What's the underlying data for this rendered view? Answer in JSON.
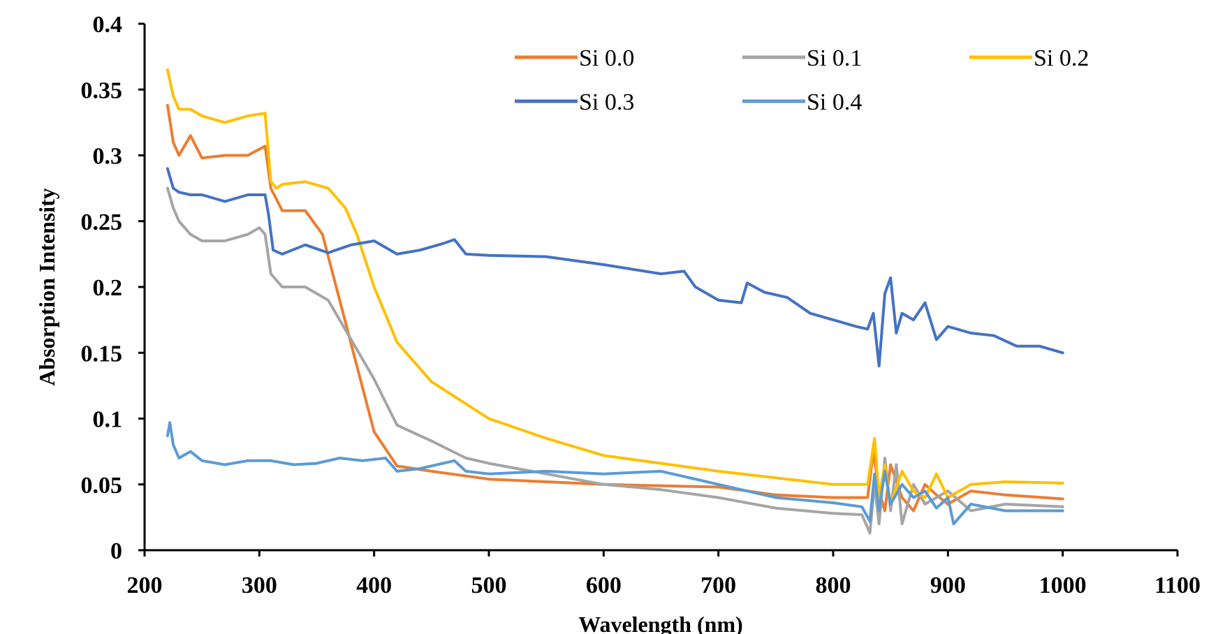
{
  "chart_data": {
    "type": "line",
    "xlabel": "Wavelength (nm)",
    "ylabel": "Absorption Intensity",
    "xlim": [
      200,
      1100
    ],
    "ylim": [
      0,
      0.4
    ],
    "xticks": [
      "200",
      "300",
      "400",
      "500",
      "600",
      "700",
      "800",
      "900",
      "1000",
      "1100"
    ],
    "yticks": [
      "0",
      "0.05",
      "0.1",
      "0.15",
      "0.2",
      "0.25",
      "0.3",
      "0.35",
      "0.4"
    ],
    "grid": false,
    "legend_position": "top-right",
    "series": [
      {
        "name": "Si 0.0",
        "color": "#ED7D31",
        "x": [
          220,
          225,
          230,
          240,
          250,
          270,
          290,
          305,
          310,
          320,
          340,
          355,
          370,
          385,
          400,
          420,
          450,
          500,
          550,
          600,
          700,
          750,
          800,
          830,
          835,
          840,
          845,
          850,
          860,
          870,
          880,
          890,
          900,
          920,
          950,
          1000
        ],
        "y": [
          0.338,
          0.31,
          0.3,
          0.315,
          0.298,
          0.3,
          0.3,
          0.307,
          0.275,
          0.258,
          0.258,
          0.24,
          0.19,
          0.14,
          0.09,
          0.064,
          0.06,
          0.054,
          0.052,
          0.05,
          0.048,
          0.042,
          0.04,
          0.04,
          0.075,
          0.045,
          0.03,
          0.065,
          0.04,
          0.03,
          0.05,
          0.042,
          0.035,
          0.045,
          0.042,
          0.039
        ]
      },
      {
        "name": "Si 0.1",
        "color": "#A5A5A5",
        "x": [
          220,
          225,
          230,
          240,
          250,
          270,
          290,
          300,
          305,
          310,
          315,
          320,
          340,
          360,
          380,
          400,
          420,
          450,
          480,
          500,
          550,
          600,
          650,
          700,
          750,
          800,
          825,
          832,
          836,
          840,
          845,
          850,
          855,
          860,
          870,
          880,
          900,
          920,
          950,
          1000
        ],
        "y": [
          0.275,
          0.26,
          0.25,
          0.24,
          0.235,
          0.235,
          0.24,
          0.245,
          0.24,
          0.21,
          0.205,
          0.2,
          0.2,
          0.19,
          0.16,
          0.13,
          0.095,
          0.083,
          0.07,
          0.066,
          0.058,
          0.05,
          0.046,
          0.04,
          0.032,
          0.028,
          0.027,
          0.013,
          0.05,
          0.02,
          0.07,
          0.03,
          0.065,
          0.02,
          0.05,
          0.035,
          0.045,
          0.03,
          0.035,
          0.033
        ]
      },
      {
        "name": "Si 0.2",
        "color": "#FFC000",
        "x": [
          220,
          225,
          230,
          240,
          250,
          270,
          290,
          305,
          310,
          315,
          320,
          340,
          360,
          375,
          385,
          400,
          420,
          450,
          500,
          550,
          600,
          650,
          700,
          750,
          800,
          830,
          836,
          840,
          845,
          850,
          860,
          870,
          880,
          890,
          900,
          920,
          950,
          1000
        ],
        "y": [
          0.365,
          0.345,
          0.335,
          0.335,
          0.33,
          0.325,
          0.33,
          0.332,
          0.28,
          0.275,
          0.278,
          0.28,
          0.275,
          0.26,
          0.24,
          0.2,
          0.158,
          0.128,
          0.1,
          0.085,
          0.072,
          0.066,
          0.06,
          0.055,
          0.05,
          0.05,
          0.085,
          0.04,
          0.065,
          0.035,
          0.06,
          0.045,
          0.04,
          0.058,
          0.04,
          0.05,
          0.052,
          0.051
        ]
      },
      {
        "name": "Si 0.3",
        "color": "#4472C4",
        "x": [
          220,
          225,
          230,
          240,
          250,
          270,
          290,
          305,
          308,
          312,
          320,
          340,
          360,
          380,
          400,
          420,
          440,
          460,
          470,
          480,
          500,
          550,
          600,
          650,
          670,
          680,
          700,
          720,
          725,
          740,
          760,
          780,
          800,
          820,
          830,
          835,
          840,
          845,
          850,
          855,
          860,
          870,
          880,
          890,
          900,
          920,
          940,
          960,
          980,
          1000
        ],
        "y": [
          0.29,
          0.275,
          0.272,
          0.27,
          0.27,
          0.265,
          0.27,
          0.27,
          0.255,
          0.228,
          0.225,
          0.232,
          0.226,
          0.232,
          0.235,
          0.225,
          0.228,
          0.233,
          0.236,
          0.225,
          0.224,
          0.223,
          0.217,
          0.21,
          0.212,
          0.2,
          0.19,
          0.188,
          0.203,
          0.196,
          0.192,
          0.18,
          0.175,
          0.17,
          0.168,
          0.18,
          0.14,
          0.195,
          0.207,
          0.165,
          0.18,
          0.175,
          0.188,
          0.16,
          0.17,
          0.165,
          0.163,
          0.155,
          0.155,
          0.15
        ]
      },
      {
        "name": "Si 0.4",
        "color": "#5B9BD5",
        "x": [
          220,
          222,
          225,
          230,
          240,
          250,
          270,
          290,
          310,
          330,
          350,
          370,
          390,
          410,
          420,
          440,
          460,
          470,
          480,
          500,
          550,
          600,
          650,
          700,
          750,
          800,
          825,
          832,
          836,
          840,
          845,
          850,
          860,
          870,
          880,
          890,
          900,
          905,
          920,
          950,
          1000
        ],
        "y": [
          0.087,
          0.097,
          0.08,
          0.07,
          0.075,
          0.068,
          0.065,
          0.068,
          0.068,
          0.065,
          0.066,
          0.07,
          0.068,
          0.07,
          0.06,
          0.062,
          0.066,
          0.068,
          0.06,
          0.058,
          0.06,
          0.058,
          0.06,
          0.05,
          0.04,
          0.036,
          0.033,
          0.022,
          0.058,
          0.03,
          0.06,
          0.035,
          0.05,
          0.04,
          0.045,
          0.032,
          0.04,
          0.02,
          0.035,
          0.03,
          0.03
        ]
      }
    ]
  }
}
